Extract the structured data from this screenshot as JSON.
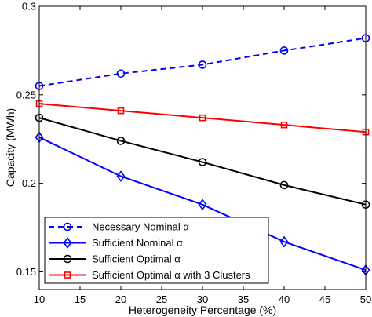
{
  "chart_data": {
    "type": "line",
    "xlabel": "Heterogeneity Percentage (%)",
    "ylabel": "Capacity (MWh)",
    "xlim": [
      10,
      50
    ],
    "ylim": [
      0.14,
      0.3
    ],
    "x": [
      10,
      20,
      30,
      40,
      50
    ],
    "xticks": [
      "10",
      "15",
      "20",
      "25",
      "30",
      "35",
      "40",
      "45",
      "50"
    ],
    "xtick_values": [
      10,
      15,
      20,
      25,
      30,
      35,
      40,
      45,
      50
    ],
    "yticks": [
      "0.15",
      "0.2",
      "0.25",
      "0.3"
    ],
    "ytick_values": [
      0.15,
      0.2,
      0.25,
      0.3
    ],
    "grid": false,
    "legend_position": "bottom-left",
    "series": [
      {
        "name": "Necessary Nominal α",
        "values": [
          0.255,
          0.262,
          0.267,
          0.275,
          0.282
        ],
        "color": "#0000ff",
        "dash": true,
        "marker": "circle"
      },
      {
        "name": "Sufficient Nominal α",
        "values": [
          0.226,
          0.204,
          0.188,
          0.167,
          0.151
        ],
        "color": "#0000ff",
        "dash": false,
        "marker": "diamond"
      },
      {
        "name": "Sufficient Optimal α",
        "values": [
          0.237,
          0.224,
          0.212,
          0.199,
          0.188
        ],
        "color": "#000000",
        "dash": false,
        "marker": "circle"
      },
      {
        "name": "Sufficient Optimal α with 3 Clusters",
        "values": [
          0.245,
          0.241,
          0.237,
          0.233,
          0.229
        ],
        "color": "#ff0000",
        "dash": false,
        "marker": "square"
      }
    ]
  }
}
